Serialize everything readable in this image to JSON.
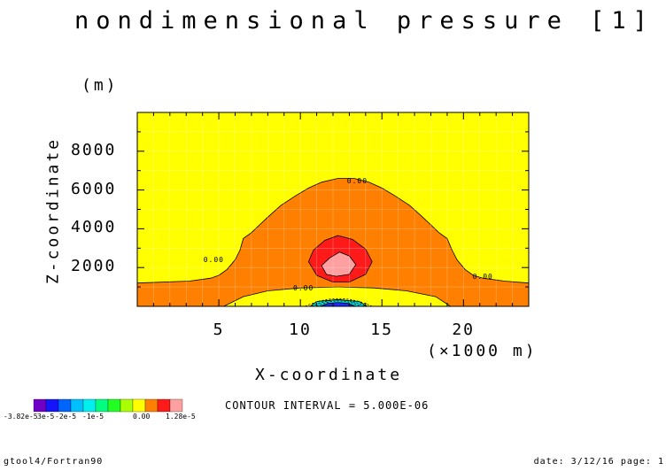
{
  "chart_data": {
    "type": "contour",
    "title": "nondimensional pressure [1]",
    "xlabel": "X-coordinate",
    "x_unit": "(×1000 m)",
    "ylabel": "Z-coordinate",
    "y_unit": "(m)",
    "xlim": [
      0,
      24
    ],
    "ylim": [
      0,
      10000
    ],
    "x_ticks": [
      5,
      10,
      15,
      20
    ],
    "y_ticks": [
      2000,
      4000,
      6000,
      8000
    ],
    "grid": true,
    "contour_interval_label": "CONTOUR INTERVAL = 5.000E-06",
    "contour_labels": [
      {
        "text": "0.00",
        "x": 13.4,
        "y": 6380
      },
      {
        "text": "0.00",
        "x": 4.6,
        "y": 2350
      },
      {
        "text": "0.00",
        "x": 21.1,
        "y": 1450
      },
      {
        "text": "0.00",
        "x": 10.1,
        "y": 860
      }
    ],
    "regions": [
      {
        "name": "below -5e-6",
        "color": "#00ff55",
        "boundary": [
          [
            9.7,
            0
          ],
          [
            10.2,
            300
          ],
          [
            11,
            500
          ],
          [
            12.3,
            600
          ],
          [
            13.6,
            500
          ],
          [
            14.5,
            300
          ],
          [
            15,
            0
          ]
        ]
      },
      {
        "name": "-5e-6 to 0",
        "color": "#ffff00",
        "boundary": [
          [
            5.3,
            0
          ],
          [
            6.5,
            500
          ],
          [
            8,
            800
          ],
          [
            10,
            950
          ],
          [
            12.3,
            1000
          ],
          [
            14.5,
            950
          ],
          [
            16.5,
            800
          ],
          [
            18.3,
            500
          ],
          [
            19.2,
            0
          ]
        ]
      },
      {
        "name": "0 to 5e-6",
        "color": "#ff7f00",
        "boundary": [
          [
            0,
            1200
          ],
          [
            3.2,
            1300
          ],
          [
            4.5,
            1450
          ],
          [
            5,
            1600
          ],
          [
            5.5,
            1900
          ],
          [
            6,
            2400
          ],
          [
            6.3,
            2900
          ],
          [
            6.5,
            3500
          ],
          [
            7,
            3800
          ],
          [
            7.5,
            4200
          ],
          [
            8,
            4600
          ],
          [
            8.8,
            5200
          ],
          [
            9.7,
            5700
          ],
          [
            10.5,
            6100
          ],
          [
            11.3,
            6400
          ],
          [
            12.3,
            6600
          ],
          [
            13.3,
            6600
          ],
          [
            14.2,
            6400
          ],
          [
            15,
            6100
          ],
          [
            15.8,
            5700
          ],
          [
            16.7,
            5200
          ],
          [
            17.5,
            4600
          ],
          [
            18,
            4200
          ],
          [
            18.5,
            3800
          ],
          [
            19,
            3500
          ],
          [
            19.3,
            2900
          ],
          [
            19.6,
            2400
          ],
          [
            20.1,
            1900
          ],
          [
            20.6,
            1600
          ],
          [
            21.2,
            1450
          ],
          [
            22.5,
            1300
          ],
          [
            24,
            1200
          ]
        ]
      },
      {
        "name": "5e-6 to 1e-5",
        "color": "#ff1a1a",
        "boundary": [
          [
            10.5,
            2300
          ],
          [
            10.8,
            2900
          ],
          [
            11.5,
            3400
          ],
          [
            12.3,
            3650
          ],
          [
            13.2,
            3450
          ],
          [
            14,
            2950
          ],
          [
            14.4,
            2300
          ],
          [
            14,
            1650
          ],
          [
            13,
            1250
          ],
          [
            12,
            1250
          ],
          [
            11,
            1600
          ]
        ]
      },
      {
        "name": "above 1e-5",
        "color": "#ffa0a0",
        "boundary": [
          [
            11.3,
            2100
          ],
          [
            11.8,
            2500
          ],
          [
            12.4,
            2800
          ],
          [
            13,
            2600
          ],
          [
            13.4,
            2150
          ],
          [
            13,
            1650
          ],
          [
            12.2,
            1550
          ],
          [
            11.6,
            1650
          ]
        ]
      },
      {
        "name": "inner 1",
        "color": "#00d8d8",
        "boundary": [
          [
            10.6,
            0
          ],
          [
            11,
            250
          ],
          [
            12.3,
            350
          ],
          [
            13.6,
            250
          ],
          [
            14.1,
            0
          ]
        ]
      },
      {
        "name": "inner 2",
        "color": "#1e2cff",
        "boundary": [
          [
            11.2,
            0
          ],
          [
            11.7,
            150
          ],
          [
            12.3,
            200
          ],
          [
            12.9,
            150
          ],
          [
            13.4,
            0
          ]
        ]
      }
    ],
    "legend": {
      "position": "bottom-left",
      "colors": [
        "#7000c8",
        "#1414ff",
        "#0064ff",
        "#00bfff",
        "#00f0f0",
        "#00ff80",
        "#22ff22",
        "#aaff00",
        "#ffff00",
        "#ff7f00",
        "#ff1a1a",
        "#ffa0a0"
      ],
      "labels": [
        "-3.82e-5",
        "3e-5",
        "-2e-5",
        "-1e-5",
        "0.00",
        "1.28e-5"
      ]
    },
    "colors": {
      "background": "#ffff00"
    }
  },
  "footer": {
    "left": "gtool4/Fortran90",
    "right": "date: 3/12/16 page: 1"
  }
}
